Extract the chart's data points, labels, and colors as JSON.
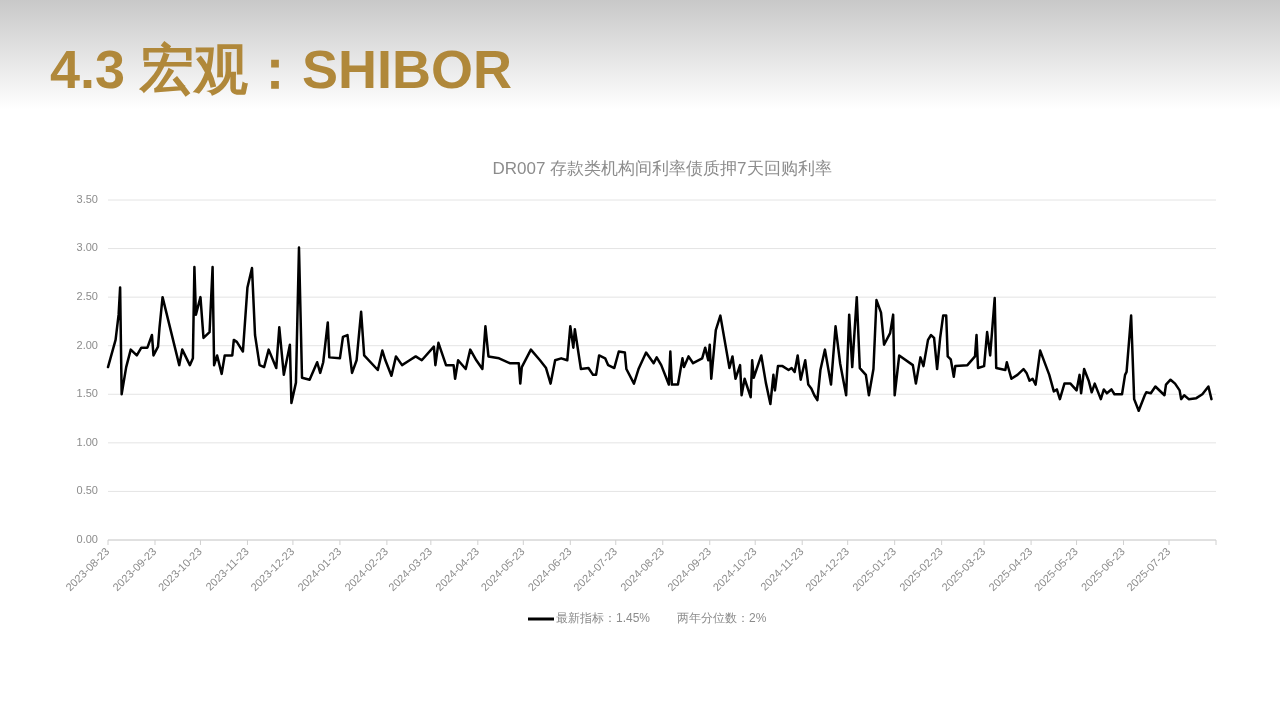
{
  "chart_data": {
    "type": "line",
    "title": "4.3 宏观：SHIBOR",
    "subtitle": "DR007  存款类机构间利率债质押7天回购利率",
    "xlim": [
      "2023-08-23",
      "2025-08-23"
    ],
    "xticks": [
      {
        "value": "2023-08-23",
        "label": "2023-08-23"
      },
      {
        "value": "2023-09-23",
        "label": "2023-09-23"
      },
      {
        "value": "2023-10-23",
        "label": "2023-10-23"
      },
      {
        "value": "2023-11-23",
        "label": "2023-11-23"
      },
      {
        "value": "2023-12-23",
        "label": "2023-12-23"
      },
      {
        "value": "2024-01-23",
        "label": "2024-01-23"
      },
      {
        "value": "2024-02-23",
        "label": "2024-02-23"
      },
      {
        "value": "2024-03-23",
        "label": "2024-03-23"
      },
      {
        "value": "2024-04-23",
        "label": "2024-04-23"
      },
      {
        "value": "2024-05-23",
        "label": "2024-05-23"
      },
      {
        "value": "2024-06-23",
        "label": "2024-06-23"
      },
      {
        "value": "2024-07-23",
        "label": "2024-07-23"
      },
      {
        "value": "2024-08-23",
        "label": "2024-08-23"
      },
      {
        "value": "2024-09-23",
        "label": "2024-09-23"
      },
      {
        "value": "2024-10-23",
        "label": "2024-10-23"
      },
      {
        "value": "2024-11-23",
        "label": "2024-11-23"
      },
      {
        "value": "2024-12-23",
        "label": "2024-12-23"
      },
      {
        "value": "2025-01-23",
        "label": "2025-01-23"
      },
      {
        "value": "2025-02-23",
        "label": "2025-02-23"
      },
      {
        "value": "2025-03-23",
        "label": "2025-03-23"
      },
      {
        "value": "2025-04-23",
        "label": "2025-04-23"
      },
      {
        "value": "2025-05-23",
        "label": "2025-05-23"
      },
      {
        "value": "2025-06-23",
        "label": "2025-06-23"
      },
      {
        "value": "2025-07-23",
        "label": "2025-07-23"
      },
      {
        "value": "2025-08-23",
        "label": null
      }
    ],
    "ylim": [
      0,
      3.5
    ],
    "yticks": [
      {
        "value": 0,
        "label": "0.00"
      },
      {
        "value": 0.5,
        "label": "0.50"
      },
      {
        "value": 1,
        "label": "1.00"
      },
      {
        "value": 1.5,
        "label": "1.50"
      },
      {
        "value": 2,
        "label": "2.00"
      },
      {
        "value": 2.5,
        "label": "2.50"
      },
      {
        "value": 3,
        "label": "3.00"
      },
      {
        "value": 3.5,
        "label": "3.50"
      }
    ],
    "grid": "y",
    "legend": "bottom",
    "marker": "none",
    "line_style": "solid",
    "annotations": [
      "两年分位数：2%"
    ],
    "series": [
      {
        "name": "最新指标：1.45%",
        "color": "#000000",
        "x": [
          "2023-08-23",
          "2023-08-28",
          "2023-08-30",
          "2023-08-31",
          "2023-09-01",
          "2023-09-04",
          "2023-09-07",
          "2023-09-11",
          "2023-09-14",
          "2023-09-18",
          "2023-09-21",
          "2023-09-22",
          "2023-09-25",
          "2023-09-26",
          "2023-09-28",
          "2023-10-09",
          "2023-10-11",
          "2023-10-16",
          "2023-10-18",
          "2023-10-19",
          "2023-10-20",
          "2023-10-23",
          "2023-10-25",
          "2023-10-29",
          "2023-10-31",
          "2023-11-01",
          "2023-11-03",
          "2023-11-06",
          "2023-11-08",
          "2023-11-13",
          "2023-11-14",
          "2023-11-16",
          "2023-11-20",
          "2023-11-23",
          "2023-11-26",
          "2023-11-28",
          "2023-12-01",
          "2023-12-04",
          "2023-12-07",
          "2023-12-12",
          "2023-12-14",
          "2023-12-17",
          "2023-12-21",
          "2023-12-22",
          "2023-12-25",
          "2023-12-27",
          "2023-12-29",
          "2024-01-03",
          "2024-01-08",
          "2024-01-10",
          "2024-01-12",
          "2024-01-15",
          "2024-01-16",
          "2024-01-23",
          "2024-01-25",
          "2024-01-28",
          "2024-01-31",
          "2024-02-03",
          "2024-02-06",
          "2024-02-08",
          "2024-02-17",
          "2024-02-20",
          "2024-02-22",
          "2024-02-26",
          "2024-02-29",
          "2024-03-04",
          "2024-03-09",
          "2024-03-13",
          "2024-03-17",
          "2024-03-25",
          "2024-03-26",
          "2024-03-28",
          "2024-04-02",
          "2024-04-07",
          "2024-04-08",
          "2024-04-10",
          "2024-04-15",
          "2024-04-18",
          "2024-04-22",
          "2024-04-26",
          "2024-04-28",
          "2024-04-30",
          "2024-05-07",
          "2024-05-14",
          "2024-05-20",
          "2024-05-21",
          "2024-05-22",
          "2024-05-28",
          "2024-06-03",
          "2024-06-07",
          "2024-06-10",
          "2024-06-13",
          "2024-06-17",
          "2024-06-21",
          "2024-06-23",
          "2024-06-25",
          "2024-06-26",
          "2024-06-30",
          "2024-07-05",
          "2024-07-08",
          "2024-07-10",
          "2024-07-12",
          "2024-07-16",
          "2024-07-18",
          "2024-07-22",
          "2024-07-25",
          "2024-07-29",
          "2024-07-30",
          "2024-08-04",
          "2024-08-07",
          "2024-08-12",
          "2024-08-17",
          "2024-08-19",
          "2024-08-22",
          "2024-08-27",
          "2024-08-28",
          "2024-08-29",
          "2024-09-02",
          "2024-09-05",
          "2024-09-06",
          "2024-09-09",
          "2024-09-12",
          "2024-09-18",
          "2024-09-20",
          "2024-09-22",
          "2024-09-23",
          "2024-09-24",
          "2024-09-27",
          "2024-09-30",
          "2024-10-06",
          "2024-10-08",
          "2024-10-10",
          "2024-10-13",
          "2024-10-14",
          "2024-10-16",
          "2024-10-20",
          "2024-10-21",
          "2024-10-22",
          "2024-10-27",
          "2024-10-30",
          "2024-11-02",
          "2024-11-04",
          "2024-11-05",
          "2024-11-07",
          "2024-11-10",
          "2024-11-14",
          "2024-11-16",
          "2024-11-18",
          "2024-11-20",
          "2024-11-22",
          "2024-11-25",
          "2024-11-27",
          "2024-11-29",
          "2024-12-01",
          "2024-12-03",
          "2024-12-05",
          "2024-12-08",
          "2024-12-12",
          "2024-12-15",
          "2024-12-18",
          "2024-12-22",
          "2024-12-24",
          "2024-12-26",
          "2024-12-29",
          "2024-12-31",
          "2025-01-04",
          "2025-01-06",
          "2025-01-09",
          "2025-01-11",
          "2025-01-14",
          "2025-01-16",
          "2025-01-20",
          "2025-01-22",
          "2025-01-23",
          "2025-01-26",
          "2025-02-04",
          "2025-02-06",
          "2025-02-09",
          "2025-02-11",
          "2025-02-14",
          "2025-02-16",
          "2025-02-18",
          "2025-02-20",
          "2025-02-22",
          "2025-02-24",
          "2025-02-26",
          "2025-02-27",
          "2025-03-01",
          "2025-03-03",
          "2025-03-04",
          "2025-03-12",
          "2025-03-17",
          "2025-03-18",
          "2025-03-19",
          "2025-03-23",
          "2025-03-25",
          "2025-03-27",
          "2025-03-30",
          "2025-03-31",
          "2025-04-06",
          "2025-04-07",
          "2025-04-10",
          "2025-04-14",
          "2025-04-18",
          "2025-04-20",
          "2025-04-22",
          "2025-04-24",
          "2025-04-26",
          "2025-04-29",
          "2025-05-05",
          "2025-05-08",
          "2025-05-10",
          "2025-05-12",
          "2025-05-15",
          "2025-05-19",
          "2025-05-23",
          "2025-05-25",
          "2025-05-26",
          "2025-05-28",
          "2025-05-31",
          "2025-06-02",
          "2025-06-04",
          "2025-06-08",
          "2025-06-10",
          "2025-06-12",
          "2025-06-15",
          "2025-06-17",
          "2025-06-22",
          "2025-06-24",
          "2025-06-25",
          "2025-06-28",
          "2025-06-30",
          "2025-07-03",
          "2025-07-07",
          "2025-07-08",
          "2025-07-11",
          "2025-07-14",
          "2025-07-20",
          "2025-07-21",
          "2025-07-24",
          "2025-07-27",
          "2025-07-30",
          "2025-07-31",
          "2025-08-02",
          "2025-08-05",
          "2025-08-10",
          "2025-08-14",
          "2025-08-18",
          "2025-08-20"
        ],
        "values": [
          1.78,
          2.06,
          2.32,
          2.6,
          1.5,
          1.78,
          1.96,
          1.9,
          1.98,
          1.98,
          2.11,
          1.9,
          1.99,
          2.19,
          2.5,
          1.8,
          1.96,
          1.8,
          1.87,
          2.81,
          2.32,
          2.5,
          2.08,
          2.14,
          2.81,
          1.8,
          1.9,
          1.71,
          1.9,
          1.9,
          2.06,
          2.04,
          1.94,
          2.6,
          2.8,
          2.11,
          1.8,
          1.78,
          1.96,
          1.77,
          2.19,
          1.7,
          2.01,
          1.41,
          1.62,
          3.01,
          1.67,
          1.65,
          1.83,
          1.72,
          1.83,
          2.24,
          1.88,
          1.87,
          2.09,
          2.11,
          1.72,
          1.85,
          2.35,
          1.9,
          1.75,
          1.95,
          1.85,
          1.69,
          1.89,
          1.8,
          1.85,
          1.89,
          1.85,
          1.99,
          1.8,
          2.03,
          1.8,
          1.8,
          1.66,
          1.85,
          1.76,
          1.96,
          1.85,
          1.76,
          2.2,
          1.89,
          1.87,
          1.82,
          1.82,
          1.61,
          1.78,
          1.96,
          1.85,
          1.77,
          1.61,
          1.85,
          1.87,
          1.85,
          2.2,
          1.98,
          2.17,
          1.76,
          1.77,
          1.7,
          1.7,
          1.9,
          1.87,
          1.8,
          1.77,
          1.94,
          1.93,
          1.76,
          1.61,
          1.76,
          1.93,
          1.82,
          1.88,
          1.8,
          1.6,
          1.94,
          1.6,
          1.6,
          1.87,
          1.78,
          1.89,
          1.82,
          1.87,
          1.98,
          1.85,
          2.01,
          1.66,
          2.16,
          2.31,
          1.77,
          1.89,
          1.66,
          1.8,
          1.49,
          1.66,
          1.47,
          1.85,
          1.67,
          1.9,
          1.62,
          1.4,
          1.7,
          1.54,
          1.79,
          1.79,
          1.75,
          1.77,
          1.73,
          1.9,
          1.65,
          1.85,
          1.6,
          1.56,
          1.49,
          1.44,
          1.75,
          1.96,
          1.6,
          2.2,
          1.82,
          1.49,
          2.32,
          1.78,
          2.5,
          1.77,
          1.7,
          1.49,
          1.76,
          2.47,
          2.34,
          2.01,
          2.13,
          2.32,
          1.49,
          1.9,
          1.8,
          1.61,
          1.88,
          1.79,
          2.06,
          2.11,
          2.08,
          1.76,
          2.08,
          2.31,
          2.31,
          1.89,
          1.86,
          1.68,
          1.79,
          1.8,
          1.89,
          2.11,
          1.77,
          1.79,
          2.14,
          1.9,
          2.49,
          1.77,
          1.75,
          1.83,
          1.66,
          1.7,
          1.76,
          1.72,
          1.64,
          1.66,
          1.6,
          1.95,
          1.7,
          1.53,
          1.55,
          1.45,
          1.61,
          1.61,
          1.54,
          1.7,
          1.51,
          1.76,
          1.64,
          1.52,
          1.61,
          1.45,
          1.55,
          1.51,
          1.55,
          1.5,
          1.5,
          1.7,
          1.73,
          2.31,
          1.45,
          1.33,
          1.49,
          1.52,
          1.51,
          1.58,
          1.49,
          1.6,
          1.65,
          1.61,
          1.54,
          1.45,
          1.49,
          1.45,
          1.46,
          1.5,
          1.58,
          1.45
        ]
      }
    ]
  }
}
